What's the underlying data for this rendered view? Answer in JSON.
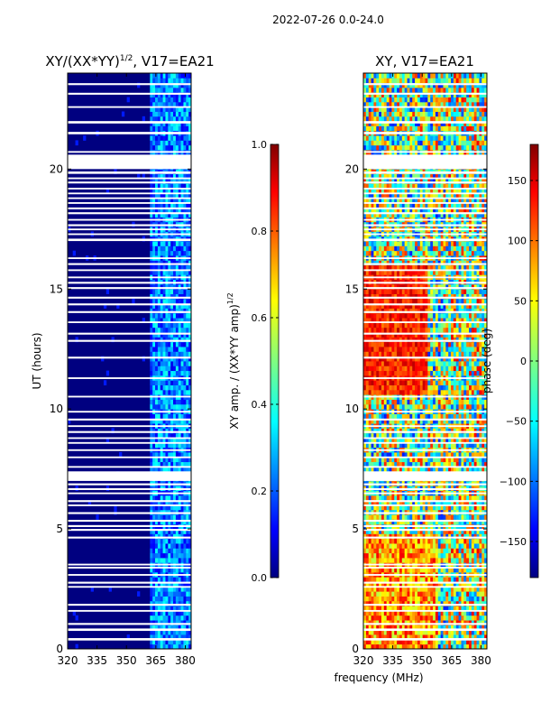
{
  "suptitle": "2022-07-26 0.0-24.0",
  "xlabel_shared": "frequency (MHz)",
  "colors": {
    "jet": [
      "#000080",
      "#0000ff",
      "#0080ff",
      "#00ffff",
      "#80ff80",
      "#ffff00",
      "#ff8000",
      "#ff0000",
      "#800000"
    ],
    "gap": "#ffffff",
    "axis": "#000000"
  },
  "chart_data": [
    {
      "type": "heatmap",
      "id": "amp",
      "title_main": "XY/(XX*YY)",
      "title_sup": "1/2",
      "title_tail": ", V17=EA21",
      "xlabel": "",
      "ylabel": "UT (hours)",
      "xlim": [
        320,
        383
      ],
      "ylim": [
        0,
        24
      ],
      "xticks": [
        320,
        335,
        350,
        365,
        380
      ],
      "yticks": [
        0,
        5,
        10,
        15,
        20
      ],
      "colorbar": {
        "label_main": "XY amp. / (XX*YY amp)",
        "label_sup": "1/2",
        "range": [
          0.0,
          1.0
        ],
        "ticks": [
          0.0,
          0.2,
          0.4,
          0.6,
          0.8,
          1.0
        ],
        "tick_labels": [
          "0.0",
          "0.2",
          "0.4",
          "0.6",
          "0.8",
          "1.0"
        ]
      },
      "description": "Mostly near 0 (dark blue); values 0.1-0.4 for frequencies 362-383 MHz"
    },
    {
      "type": "heatmap",
      "id": "phase",
      "title_main": "XY, V17=EA21",
      "xlabel": "frequency (MHz)",
      "ylabel": "",
      "xlim": [
        320,
        383
      ],
      "ylim": [
        0,
        24
      ],
      "xticks": [
        320,
        335,
        350,
        365,
        380
      ],
      "yticks": [
        0,
        5,
        10,
        15,
        20
      ],
      "colorbar": {
        "label_main": "phase (deg)",
        "range": [
          -180,
          180
        ],
        "ticks": [
          -150,
          -100,
          -50,
          0,
          50,
          100,
          150
        ],
        "tick_labels": [
          "−150",
          "−100",
          "−50",
          "0",
          "50",
          "100",
          "150"
        ]
      },
      "description": "Phase varies: red/yellow (+50 to +180) near 330-345 MHz from 11-16 h, mixed elsewhere"
    }
  ],
  "gap_bands_hours": [
    [
      0.35,
      0.45
    ],
    [
      0.75,
      0.85
    ],
    [
      1.0,
      1.08
    ],
    [
      1.55,
      1.62
    ],
    [
      1.8,
      1.88
    ],
    [
      2.55,
      2.62
    ],
    [
      2.72,
      2.8
    ],
    [
      3.05,
      3.12
    ],
    [
      3.35,
      3.42
    ],
    [
      3.48,
      3.55
    ],
    [
      4.6,
      4.68
    ],
    [
      4.92,
      5.0
    ],
    [
      5.08,
      5.16
    ],
    [
      5.3,
      5.38
    ],
    [
      5.62,
      5.7
    ],
    [
      5.95,
      6.02
    ],
    [
      6.12,
      6.2
    ],
    [
      6.45,
      6.52
    ],
    [
      6.62,
      6.7
    ],
    [
      6.82,
      6.9
    ],
    [
      7.0,
      7.4
    ],
    [
      7.55,
      7.62
    ],
    [
      7.95,
      8.02
    ],
    [
      8.25,
      8.32
    ],
    [
      8.55,
      8.62
    ],
    [
      8.75,
      8.82
    ],
    [
      9.0,
      9.08
    ],
    [
      9.25,
      9.32
    ],
    [
      9.52,
      9.6
    ],
    [
      9.85,
      9.92
    ],
    [
      10.48,
      10.55
    ],
    [
      11.25,
      11.32
    ],
    [
      12.1,
      12.18
    ],
    [
      12.8,
      12.88
    ],
    [
      13.1,
      13.18
    ],
    [
      13.58,
      13.65
    ],
    [
      14.0,
      14.08
    ],
    [
      14.32,
      14.4
    ],
    [
      14.6,
      14.68
    ],
    [
      15.0,
      15.08
    ],
    [
      15.22,
      15.3
    ],
    [
      15.45,
      15.52
    ],
    [
      15.75,
      15.82
    ],
    [
      16.0,
      16.08
    ],
    [
      16.25,
      16.32
    ],
    [
      17.0,
      17.1
    ],
    [
      17.25,
      17.32
    ],
    [
      17.45,
      17.52
    ],
    [
      17.62,
      17.7
    ],
    [
      17.85,
      17.92
    ],
    [
      18.12,
      18.2
    ],
    [
      18.32,
      18.4
    ],
    [
      18.55,
      18.62
    ],
    [
      18.75,
      18.82
    ],
    [
      18.95,
      19.02
    ],
    [
      19.15,
      19.22
    ],
    [
      19.4,
      19.48
    ],
    [
      19.58,
      19.65
    ],
    [
      19.8,
      19.9
    ],
    [
      20.0,
      20.6
    ],
    [
      20.68,
      20.75
    ],
    [
      21.45,
      21.55
    ],
    [
      21.9,
      22.0
    ],
    [
      22.55,
      22.62
    ],
    [
      23.1,
      23.18
    ],
    [
      23.5,
      23.58
    ]
  ]
}
